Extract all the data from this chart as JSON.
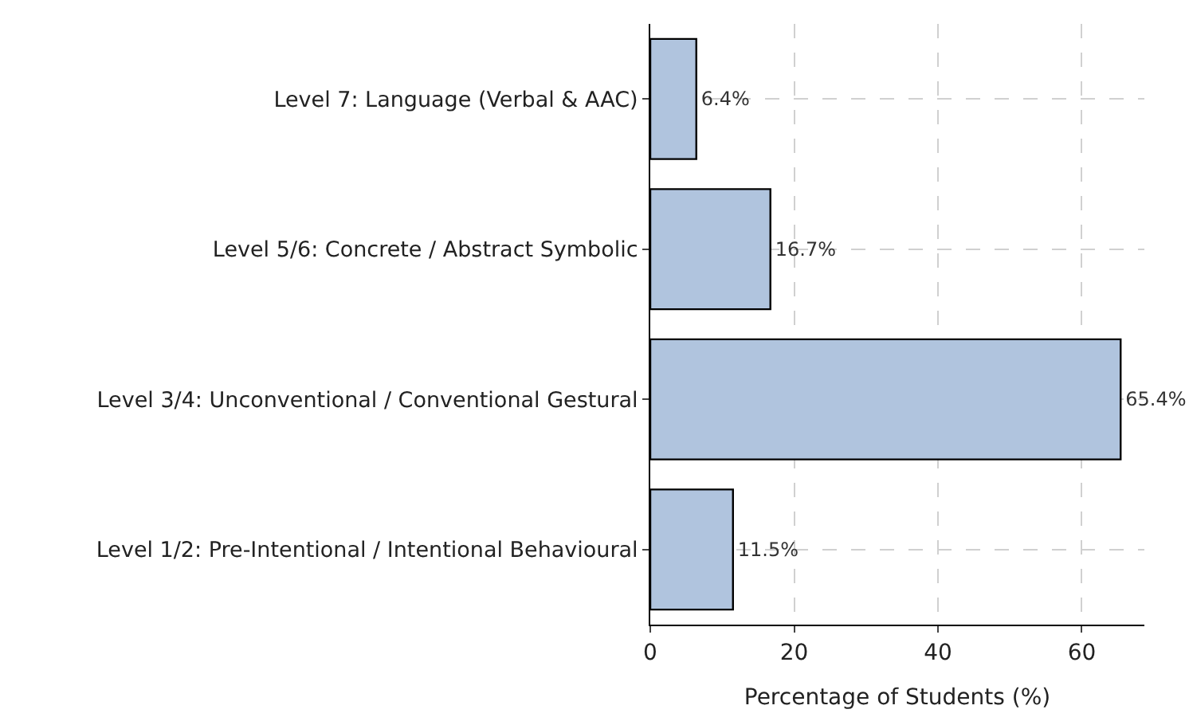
{
  "chart_data": {
    "type": "bar",
    "orientation": "horizontal",
    "xlabel": "Percentage of Students (%)",
    "categories": [
      "Level 7: Language (Verbal & AAC)",
      "Level 5/6: Concrete / Abstract Symbolic",
      "Level 3/4: Unconventional / Conventional Gestural",
      "Level 1/2: Pre-Intentional / Intentional Behavioural"
    ],
    "values": [
      6.4,
      16.7,
      65.4,
      11.5
    ],
    "value_labels": [
      "6.4%",
      "16.7%",
      "65.4%",
      "11.5%"
    ],
    "color": "#b0c4de",
    "xlim": [
      0,
      68.7
    ],
    "xticks": [
      0,
      20,
      40,
      60
    ],
    "grid": true
  }
}
